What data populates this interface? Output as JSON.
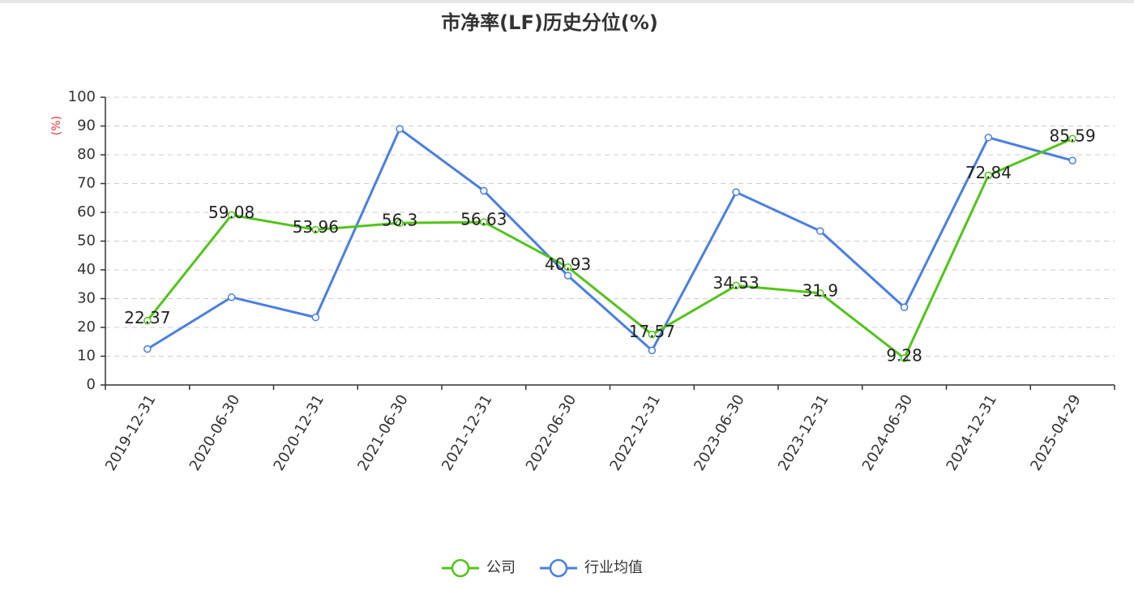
{
  "chart_data": {
    "type": "line",
    "title": "市净率(LF)历史分位(%)",
    "y_label": "(%)",
    "categories": [
      "2019-12-31",
      "2020-06-30",
      "2020-12-31",
      "2021-06-30",
      "2021-12-31",
      "2022-06-30",
      "2022-12-31",
      "2023-06-30",
      "2023-12-31",
      "2024-06-30",
      "2024-12-31",
      "2025-04-29"
    ],
    "series": [
      {
        "name": "公司",
        "color": "#52c41a",
        "values": [
          22.37,
          59.08,
          53.96,
          56.3,
          56.63,
          40.93,
          17.57,
          34.53,
          31.9,
          9.28,
          72.84,
          85.59
        ],
        "show_labels": true
      },
      {
        "name": "行业均值",
        "color": "#4a7fe0",
        "values": [
          12.5,
          30.5,
          23.5,
          89,
          67.5,
          38,
          12,
          67,
          53.5,
          27,
          86,
          78
        ],
        "show_labels": false
      }
    ],
    "ylim": [
      0,
      100
    ],
    "yticks": [
      0,
      10,
      20,
      30,
      40,
      50,
      60,
      70,
      80,
      90,
      100
    ],
    "grid": true,
    "legend": "bottom"
  }
}
